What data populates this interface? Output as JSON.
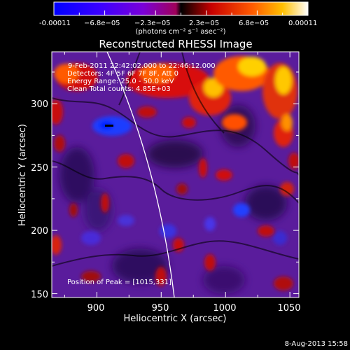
{
  "colorbar": {
    "tick_labels": [
      "-0.00011",
      "−6.8e−05",
      "−2.3e−05",
      "2.3e−05",
      "6.8e−05",
      "0.00011"
    ],
    "units_label": "(photons cm⁻² s⁻¹ asec⁻²)"
  },
  "image": {
    "title": "Reconstructed RHESSI Image",
    "info_lines": [
      "9-Feb-2011 22:42:02.000 to 22:46:12.000",
      "Detectors: 4F 5F 6F 7F 8F, Att 0",
      "Energy Range: 25.0 - 50.0 keV",
      "Clean    Total counts: 4.85E+03"
    ],
    "peak_label": "Position of Peak = [1015,331]"
  },
  "axes": {
    "xlabel": "Heliocentric X (arcsec)",
    "ylabel": "Heliocentric Y (arcsec)",
    "xticks": [
      "900",
      "950",
      "1000",
      "1050"
    ],
    "yticks": [
      "150",
      "200",
      "250",
      "300"
    ],
    "xlim": [
      865,
      1057
    ],
    "ylim": [
      147,
      341
    ]
  },
  "footer": {
    "timestamp": "8-Aug-2013 15:58"
  }
}
